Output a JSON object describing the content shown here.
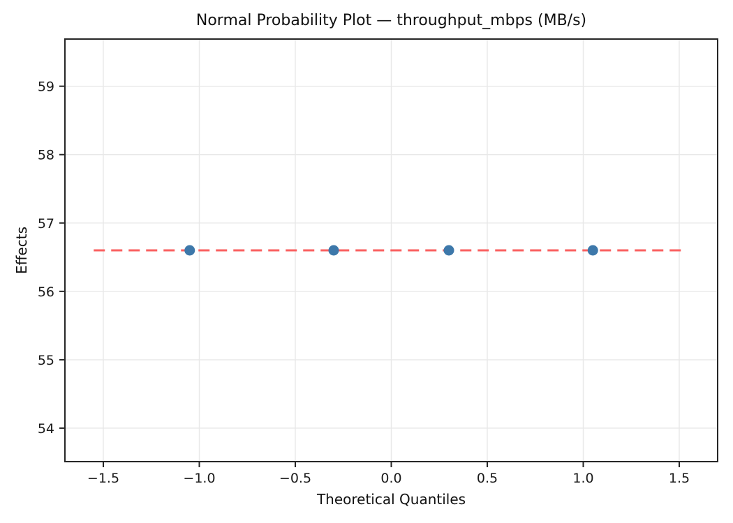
{
  "chart_data": {
    "type": "scatter",
    "title": "Normal Probability Plot — throughput_mbps (MB/s)",
    "xlabel": "Theoretical Quantiles",
    "ylabel": "Effects",
    "xlim": [
      -1.7,
      1.7
    ],
    "ylim": [
      53.51,
      59.69
    ],
    "x_ticks": [
      -1.5,
      -1.0,
      -0.5,
      0.0,
      0.5,
      1.0,
      1.5
    ],
    "x_tick_labels": [
      "−1.5",
      "−1.0",
      "−0.5",
      "0.0",
      "0.5",
      "1.0",
      "1.5"
    ],
    "y_ticks": [
      54,
      55,
      56,
      57,
      58,
      59
    ],
    "y_tick_labels": [
      "54",
      "55",
      "56",
      "57",
      "58",
      "59"
    ],
    "grid": true,
    "legend": "none",
    "series": [
      {
        "name": "effects-points",
        "marker": "circle",
        "x": [
          -1.05,
          -0.3,
          0.3,
          1.05
        ],
        "y": [
          56.6,
          56.6,
          56.6,
          56.6
        ]
      }
    ],
    "reference_line": {
      "y": 56.6,
      "x_start": -1.55,
      "x_end": 1.54,
      "style": "dashed"
    },
    "colors": {
      "point": "#3d78aa",
      "reference_line": "#fa6060",
      "grid": "#e8e8e8",
      "spine": "#262626",
      "tick_text": "#1a1a1a"
    }
  }
}
